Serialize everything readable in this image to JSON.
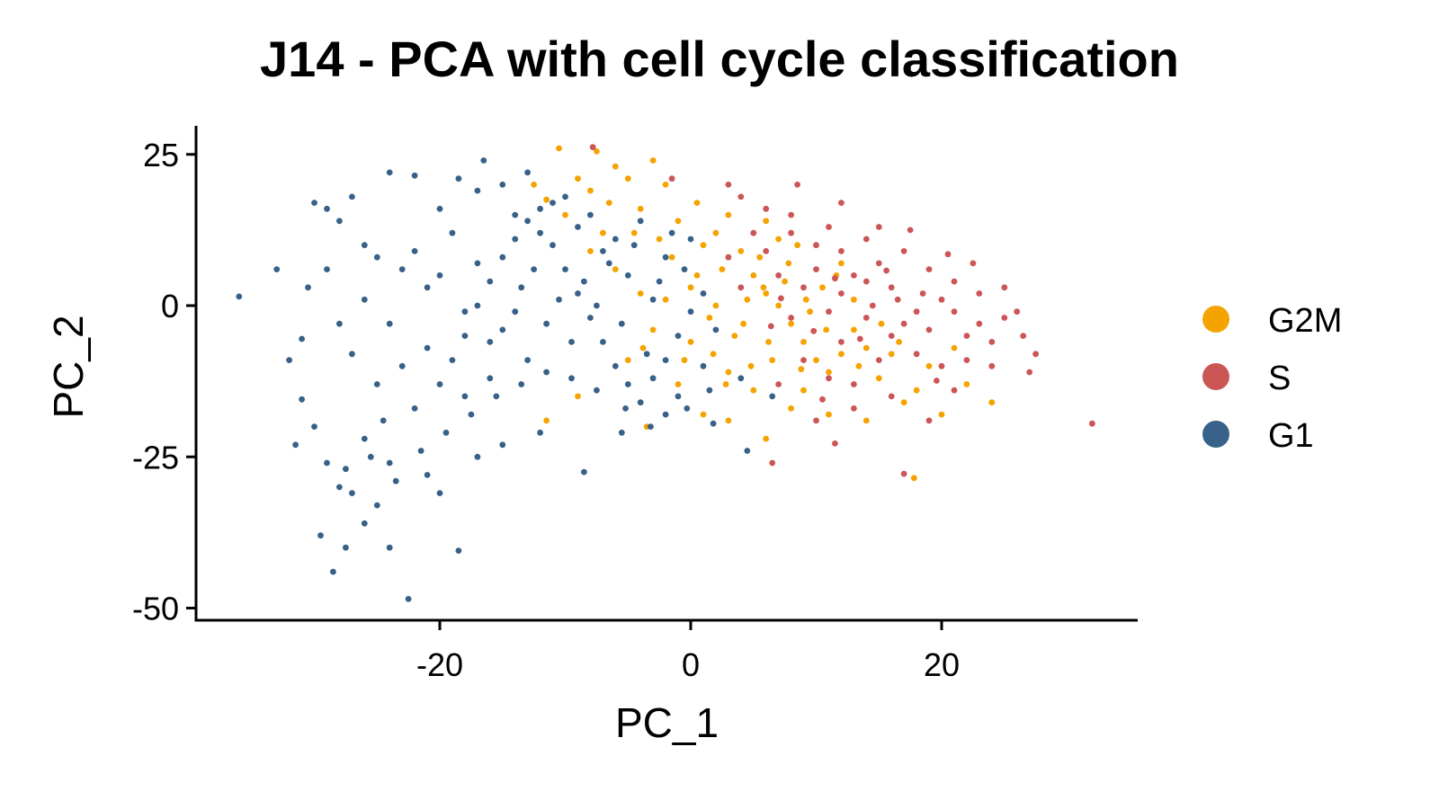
{
  "chart_data": {
    "type": "scatter",
    "title": "J14 - PCA with cell cycle classification",
    "xlabel": "PC_1",
    "ylabel": "PC_2",
    "xlim": [
      -39,
      36
    ],
    "ylim": [
      -52,
      30
    ],
    "xticks": [
      -20,
      0,
      20
    ],
    "yticks": [
      25,
      0,
      -25,
      -50
    ],
    "xtick_labels": [
      "-20",
      "0",
      "20"
    ],
    "ytick_labels": [
      "25",
      "0",
      "-25",
      "-50"
    ],
    "grid": false,
    "legend_position": "right",
    "series": [
      {
        "name": "G2M",
        "color": "#F5A300",
        "points": [
          [
            -10.5,
            26
          ],
          [
            -7.5,
            25.5
          ],
          [
            -6,
            23
          ],
          [
            -3,
            24
          ],
          [
            -5,
            21
          ],
          [
            -8,
            19
          ],
          [
            -11.5,
            17.5
          ],
          [
            -10,
            15
          ],
          [
            -7,
            12
          ],
          [
            -4,
            16
          ],
          [
            -2,
            20
          ],
          [
            -1,
            14
          ],
          [
            0.5,
            17
          ],
          [
            2,
            12
          ],
          [
            3,
            15
          ],
          [
            4,
            9
          ],
          [
            5,
            5
          ],
          [
            6,
            2
          ],
          [
            7,
            0
          ],
          [
            8,
            -3
          ],
          [
            9,
            -6
          ],
          [
            10,
            -9
          ],
          [
            12,
            -8
          ],
          [
            11,
            -11
          ],
          [
            13,
            -4
          ],
          [
            15,
            -12
          ],
          [
            17,
            -16
          ],
          [
            14,
            -19
          ],
          [
            11,
            -18
          ],
          [
            9,
            -14
          ],
          [
            8,
            -17
          ],
          [
            6,
            -22
          ],
          [
            3,
            -19
          ],
          [
            1,
            -18
          ],
          [
            -1,
            -13
          ],
          [
            -3.5,
            -20
          ],
          [
            -9,
            -15
          ],
          [
            -11.5,
            -19
          ],
          [
            0,
            3
          ],
          [
            1.5,
            -2
          ],
          [
            2.5,
            6
          ],
          [
            3.5,
            -5
          ],
          [
            4.5,
            1
          ],
          [
            5.5,
            8
          ],
          [
            6.5,
            -9
          ],
          [
            7.5,
            4
          ],
          [
            8.5,
            10
          ],
          [
            9.5,
            -1
          ],
          [
            10.5,
            3
          ],
          [
            12,
            7
          ],
          [
            13,
            1
          ],
          [
            14,
            -7
          ],
          [
            16,
            -8
          ],
          [
            18,
            -14
          ],
          [
            20,
            -18
          ],
          [
            22,
            -13
          ],
          [
            24,
            -16
          ],
          [
            17.8,
            -28.5
          ],
          [
            -2,
            1
          ],
          [
            0,
            -6
          ],
          [
            -1.5,
            8
          ],
          [
            1,
            10
          ],
          [
            2,
            0
          ],
          [
            3,
            -11
          ],
          [
            5,
            -14
          ],
          [
            6,
            14
          ],
          [
            7,
            11
          ],
          [
            -6,
            6
          ],
          [
            -4,
            2
          ],
          [
            -3,
            -4
          ],
          [
            -5,
            -9
          ],
          [
            -8,
            9
          ],
          [
            -2.5,
            11
          ],
          [
            0.5,
            5
          ],
          [
            1.8,
            -8
          ],
          [
            4.2,
            -3
          ],
          [
            5.8,
            3
          ],
          [
            6.2,
            -6
          ],
          [
            7.8,
            7
          ],
          [
            9.2,
            1
          ],
          [
            10.8,
            -4
          ],
          [
            11.6,
            5
          ],
          [
            13.4,
            -10
          ],
          [
            15.2,
            -3
          ],
          [
            16.6,
            -6
          ],
          [
            19,
            -10
          ],
          [
            21,
            -7
          ],
          [
            8.8,
            -10.5
          ],
          [
            4.8,
            -10
          ],
          [
            2.8,
            -13
          ],
          [
            -0.5,
            -9
          ],
          [
            -3.8,
            -7
          ],
          [
            -6.5,
            17
          ],
          [
            -9,
            21
          ],
          [
            -4.5,
            12
          ],
          [
            -12.5,
            20
          ]
        ]
      },
      {
        "name": "S",
        "color": "#CC5556",
        "points": [
          [
            -7.8,
            26.2
          ],
          [
            -1.5,
            21
          ],
          [
            3,
            20
          ],
          [
            6,
            16
          ],
          [
            8,
            15
          ],
          [
            11,
            13
          ],
          [
            14,
            11
          ],
          [
            17,
            9
          ],
          [
            19,
            6
          ],
          [
            21,
            4
          ],
          [
            23,
            2
          ],
          [
            25,
            -2
          ],
          [
            26.5,
            -5
          ],
          [
            27,
            -11
          ],
          [
            24,
            -10
          ],
          [
            21,
            -14
          ],
          [
            19,
            -19
          ],
          [
            16,
            -15
          ],
          [
            13,
            -17
          ],
          [
            10,
            -19
          ],
          [
            7,
            -13
          ],
          [
            6.5,
            -26
          ],
          [
            11.5,
            -22.8
          ],
          [
            17,
            -27.8
          ],
          [
            32,
            -19.5
          ],
          [
            22,
            -5
          ],
          [
            20,
            1
          ],
          [
            18,
            -1
          ],
          [
            16,
            3
          ],
          [
            15,
            7
          ],
          [
            13,
            5
          ],
          [
            12,
            2
          ],
          [
            11,
            -1
          ],
          [
            10,
            6
          ],
          [
            9,
            3
          ],
          [
            8,
            -2
          ],
          [
            7,
            5
          ],
          [
            6,
            9
          ],
          [
            5,
            12
          ],
          [
            4,
            3
          ],
          [
            3,
            8
          ],
          [
            12,
            9
          ],
          [
            14,
            -2
          ],
          [
            16,
            -5
          ],
          [
            18,
            -8
          ],
          [
            20,
            -10
          ],
          [
            22,
            -9
          ],
          [
            24,
            -6
          ],
          [
            9,
            -9
          ],
          [
            11,
            -12
          ],
          [
            13,
            -13
          ],
          [
            15,
            -9
          ],
          [
            17,
            -3
          ],
          [
            19,
            -4
          ],
          [
            21,
            -1
          ],
          [
            23,
            -3
          ],
          [
            14,
            4
          ],
          [
            12,
            -6
          ],
          [
            10,
            10
          ],
          [
            8,
            12
          ],
          [
            15,
            13
          ],
          [
            12,
            17
          ],
          [
            8.5,
            20
          ],
          [
            4,
            18
          ],
          [
            17.5,
            12.5
          ],
          [
            20.5,
            8.5
          ],
          [
            22.5,
            7
          ],
          [
            25,
            3
          ],
          [
            26,
            -1
          ],
          [
            27.5,
            -8
          ],
          [
            14.5,
            0
          ],
          [
            16.5,
            1
          ],
          [
            18.5,
            2
          ],
          [
            13.5,
            -5.5
          ],
          [
            11.5,
            4.5
          ],
          [
            9.8,
            -4.2
          ],
          [
            7.2,
            1.2
          ],
          [
            6.4,
            -3.4
          ],
          [
            15.6,
            5.8
          ],
          [
            19.6,
            -12.4
          ],
          [
            10.5,
            -15.5
          ]
        ]
      },
      {
        "name": "G1",
        "color": "#386189",
        "points": [
          [
            -36,
            1.5
          ],
          [
            -30,
            17
          ],
          [
            -29,
            16
          ],
          [
            -27,
            18
          ],
          [
            -24,
            22
          ],
          [
            -22,
            21.5
          ],
          [
            -28,
            14
          ],
          [
            -26,
            10
          ],
          [
            -25,
            8
          ],
          [
            -23,
            6
          ],
          [
            -21,
            3
          ],
          [
            -30.5,
            3
          ],
          [
            -31,
            -5.5
          ],
          [
            -31,
            -15.5
          ],
          [
            -31.5,
            -23
          ],
          [
            -29,
            -26
          ],
          [
            -28,
            -30
          ],
          [
            -27,
            -31
          ],
          [
            -25,
            -33
          ],
          [
            -26,
            -36
          ],
          [
            -27.5,
            -40
          ],
          [
            -29.5,
            -38
          ],
          [
            -28.5,
            -44
          ],
          [
            -24,
            -40
          ],
          [
            -22.5,
            -48.5
          ],
          [
            -18.5,
            -40.5
          ],
          [
            -20,
            -31
          ],
          [
            -21,
            -28
          ],
          [
            -24,
            -26
          ],
          [
            -26,
            -22
          ],
          [
            -24.5,
            -19
          ],
          [
            -22,
            -17
          ],
          [
            -20,
            -13
          ],
          [
            -19,
            -9
          ],
          [
            -18,
            -5
          ],
          [
            -17,
            0
          ],
          [
            -16,
            4
          ],
          [
            -15,
            8
          ],
          [
            -14,
            11
          ],
          [
            -13,
            14
          ],
          [
            -12,
            16
          ],
          [
            -11,
            10
          ],
          [
            -10,
            6
          ],
          [
            -9,
            2
          ],
          [
            -8,
            -2
          ],
          [
            -7,
            -6
          ],
          [
            -6,
            -10
          ],
          [
            -5,
            -13
          ],
          [
            -4,
            -16
          ],
          [
            -3,
            -12
          ],
          [
            -2,
            -9
          ],
          [
            -1,
            -5
          ],
          [
            0,
            -1
          ],
          [
            1,
            2
          ],
          [
            2,
            -4
          ],
          [
            1,
            -10
          ],
          [
            -1,
            -15
          ],
          [
            -2,
            -18
          ],
          [
            -5.5,
            -21
          ],
          [
            -8.5,
            -27.5
          ],
          [
            -12,
            -21
          ],
          [
            -15,
            -23
          ],
          [
            -17,
            -25
          ],
          [
            -13,
            -9
          ],
          [
            -15,
            -4
          ],
          [
            -17,
            7
          ],
          [
            -19,
            12
          ],
          [
            -20,
            16
          ],
          [
            -17,
            19
          ],
          [
            -18.5,
            21
          ],
          [
            -16.5,
            24
          ],
          [
            -15,
            20
          ],
          [
            -13,
            22
          ],
          [
            -11,
            17
          ],
          [
            -9,
            13
          ],
          [
            -7,
            9
          ],
          [
            -5,
            5
          ],
          [
            -3,
            1
          ],
          [
            -13.5,
            3
          ],
          [
            -14,
            -1
          ],
          [
            -12.5,
            6
          ],
          [
            -11.5,
            -3
          ],
          [
            -10.5,
            1
          ],
          [
            -9.5,
            -6
          ],
          [
            -8.5,
            4
          ],
          [
            -7.5,
            0
          ],
          [
            -6.5,
            7
          ],
          [
            -5.5,
            -3
          ],
          [
            -4.5,
            10
          ],
          [
            -3.5,
            -8
          ],
          [
            -2.5,
            4
          ],
          [
            -1.5,
            12
          ],
          [
            -0.5,
            6
          ],
          [
            -16,
            -12
          ],
          [
            -18,
            -15
          ],
          [
            -21,
            -7
          ],
          [
            -23,
            -10
          ],
          [
            -25,
            -13
          ],
          [
            -27,
            -8
          ],
          [
            -28,
            -3
          ],
          [
            -29,
            6
          ],
          [
            -26,
            1
          ],
          [
            -24,
            -3
          ],
          [
            -22,
            9
          ],
          [
            -20,
            5
          ],
          [
            -18,
            -1
          ],
          [
            -16,
            -6
          ],
          [
            -14,
            15
          ],
          [
            -12,
            12
          ],
          [
            -10,
            18
          ],
          [
            -8,
            15
          ],
          [
            -6,
            11
          ],
          [
            -4,
            14
          ],
          [
            -2,
            8
          ],
          [
            0,
            11
          ],
          [
            1.5,
            -14
          ],
          [
            4,
            -12
          ],
          [
            6.5,
            -15
          ],
          [
            4.5,
            -24
          ],
          [
            1.8,
            -19.5
          ],
          [
            -0.3,
            -17
          ],
          [
            -33,
            6
          ],
          [
            -32,
            -9
          ],
          [
            -30,
            -20
          ],
          [
            -27.5,
            -27
          ],
          [
            -25.5,
            -25
          ],
          [
            -23.5,
            -29
          ],
          [
            -21.5,
            -24
          ],
          [
            -19.5,
            -21
          ],
          [
            -17.5,
            -18
          ],
          [
            -15.5,
            -15
          ],
          [
            -13.5,
            -13
          ],
          [
            -11.5,
            -11
          ],
          [
            -9.5,
            -12
          ],
          [
            -7.5,
            -14
          ],
          [
            -5.2,
            -17
          ],
          [
            -3.2,
            -20
          ]
        ]
      }
    ]
  },
  "legend": {
    "items": [
      {
        "label": "G2M",
        "color": "#F5A300"
      },
      {
        "label": "S",
        "color": "#CC5556"
      },
      {
        "label": "G1",
        "color": "#386189"
      }
    ]
  }
}
